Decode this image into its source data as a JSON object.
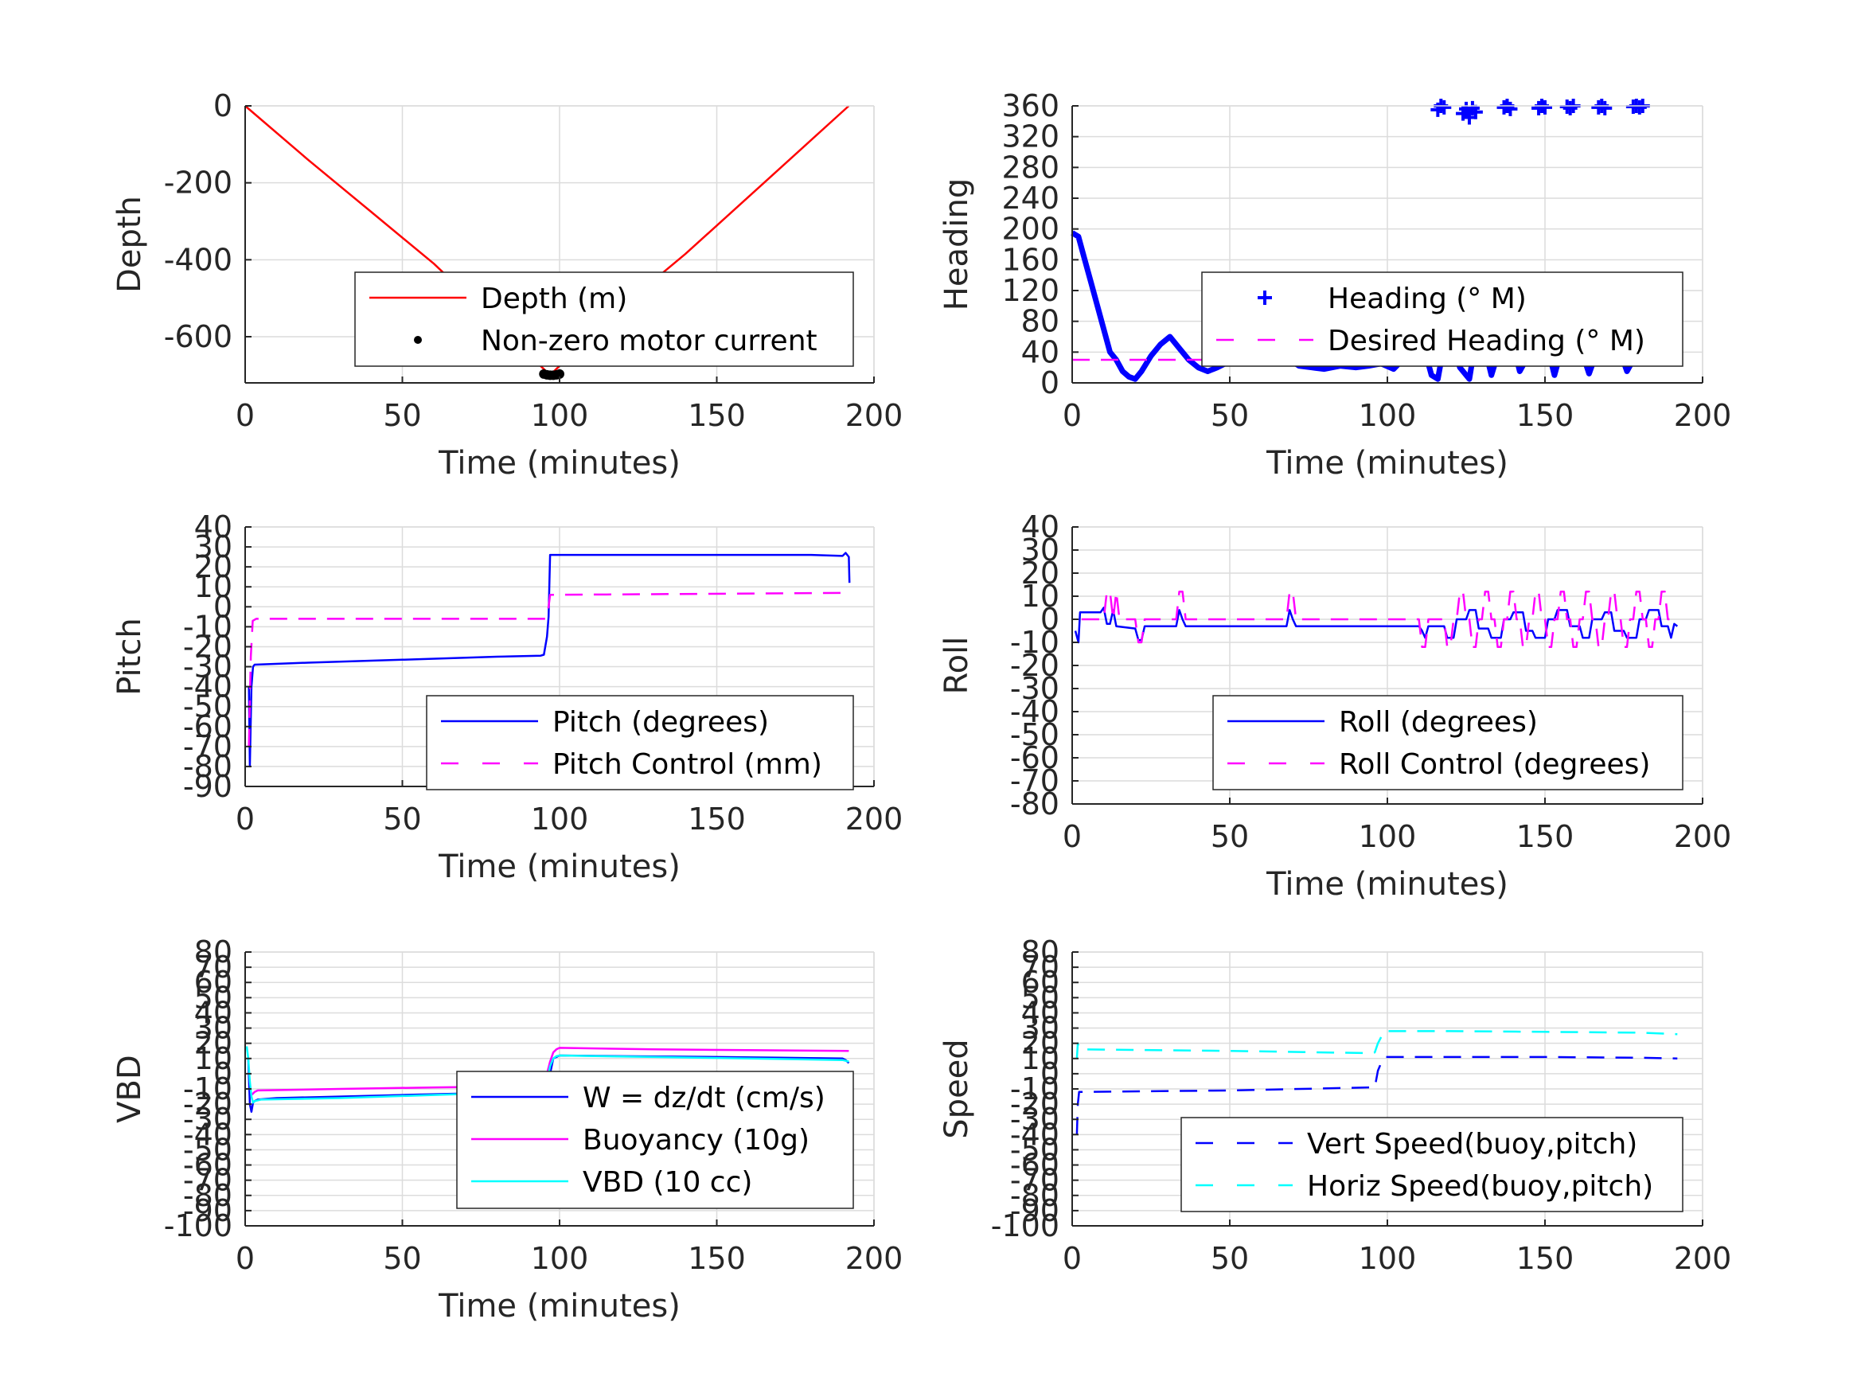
{
  "figure": {
    "background": "#ffffff",
    "grid_color": "#dcdcdc",
    "axis_color": "#262626"
  },
  "chart_data": [
    {
      "type": "line",
      "xlabel": "Time (minutes)",
      "ylabel": "Depth",
      "xlim": [
        0,
        200
      ],
      "ylim": [
        -720,
        0
      ],
      "xticks": [
        0,
        50,
        100,
        150,
        200
      ],
      "yticks": [
        0,
        -200,
        -400,
        -600
      ],
      "grid": true,
      "legend_placement": "lower-right",
      "series": [
        {
          "name": "Depth (m)",
          "color": "#ff0000",
          "style": "solid",
          "x": [
            0,
            20,
            40,
            60,
            80,
            97,
            115,
            140,
            165,
            192
          ],
          "y": [
            0,
            -140,
            -275,
            -410,
            -565,
            -700,
            -555,
            -385,
            -200,
            0
          ]
        },
        {
          "name": "Non-zero motor current",
          "color": "#000000",
          "style": "dot",
          "x": [
            95,
            96,
            97,
            98,
            99,
            100
          ],
          "y": [
            -697,
            -699,
            -700,
            -700,
            -699,
            -697
          ]
        }
      ]
    },
    {
      "type": "line",
      "xlabel": "Time (minutes)",
      "ylabel": "Heading",
      "xlim": [
        0,
        200
      ],
      "ylim": [
        0,
        360
      ],
      "xticks": [
        0,
        50,
        100,
        150,
        200
      ],
      "yticks": [
        0,
        40,
        80,
        120,
        160,
        200,
        240,
        280,
        320,
        360
      ],
      "grid": true,
      "legend_placement": "lower-right",
      "series": [
        {
          "name": "Heading (° M)",
          "color": "#0000ff",
          "style": "plus",
          "x": [
            0,
            2,
            4,
            6,
            8,
            10,
            12,
            14,
            16,
            18,
            20,
            22,
            25,
            28,
            31,
            34,
            37,
            40,
            43,
            46,
            50,
            54,
            58,
            62,
            66,
            69,
            72,
            76,
            80,
            85,
            90,
            94,
            98,
            102,
            106,
            110,
            112,
            114,
            116,
            118,
            120,
            123,
            126,
            128,
            130,
            133,
            136,
            139,
            142,
            146,
            150,
            153,
            156,
            160,
            164,
            168,
            172,
            176,
            180,
            184,
            188,
            190,
            192
          ],
          "y": [
            195,
            190,
            160,
            130,
            100,
            70,
            40,
            30,
            15,
            8,
            5,
            15,
            35,
            50,
            60,
            45,
            30,
            20,
            15,
            20,
            28,
            35,
            40,
            45,
            50,
            30,
            22,
            20,
            18,
            22,
            20,
            22,
            25,
            18,
            35,
            45,
            40,
            10,
            5,
            50,
            60,
            20,
            5,
            55,
            60,
            10,
            50,
            65,
            15,
            45,
            60,
            10,
            55,
            62,
            12,
            58,
            62,
            15,
            45,
            60,
            35,
            60,
            30
          ]
        },
        {
          "name": "",
          "color": "#0000ff",
          "style": "plus-only",
          "x": [
            116,
            117,
            118,
            124,
            125,
            126,
            127,
            128,
            137,
            138,
            139,
            148,
            149,
            150,
            157,
            158,
            159,
            167,
            168,
            169,
            178,
            179,
            180,
            181
          ],
          "y": [
            355,
            360,
            358,
            350,
            356,
            345,
            357,
            352,
            358,
            360,
            356,
            357,
            360,
            358,
            359,
            357,
            360,
            358,
            360,
            357,
            359,
            360,
            358,
            360
          ]
        },
        {
          "name": "Desired Heading (° M)",
          "color": "#ff00ff",
          "style": "dash",
          "x": [
            0,
            192
          ],
          "y": [
            30,
            30
          ]
        }
      ]
    },
    {
      "type": "line",
      "xlabel": "Time (minutes)",
      "ylabel": "Pitch",
      "xlim": [
        0,
        200
      ],
      "ylim": [
        -90,
        40
      ],
      "xticks": [
        0,
        50,
        100,
        150,
        200
      ],
      "yticks": [
        40,
        30,
        20,
        10,
        0,
        -10,
        -20,
        -30,
        -40,
        -50,
        -60,
        -70,
        -80,
        -90
      ],
      "grid": true,
      "legend_placement": "lower-right",
      "series": [
        {
          "name": "Pitch (degrees)",
          "color": "#0000ff",
          "style": "solid",
          "x": [
            1.2,
            1.5,
            2,
            2.5,
            3,
            20,
            50,
            80,
            94,
            95,
            96,
            96.5,
            97,
            98,
            120,
            150,
            180,
            190,
            191,
            192,
            192.2
          ],
          "y": [
            -40,
            -80,
            -40,
            -30,
            -29,
            -28,
            -26.5,
            -25,
            -24.5,
            -24,
            -15,
            -5,
            26,
            26,
            26,
            26,
            26,
            25.5,
            27,
            25,
            12
          ]
        },
        {
          "name": "Pitch Control (mm)",
          "color": "#ff00ff",
          "style": "dash",
          "x": [
            1.2,
            1.8,
            2.4,
            3.5,
            95.5,
            96,
            96.5,
            97,
            192
          ],
          "y": [
            -70,
            -25,
            -7,
            -6,
            -6,
            -4,
            0,
            6,
            7
          ]
        }
      ]
    },
    {
      "type": "line",
      "xlabel": "Time (minutes)",
      "ylabel": "Roll",
      "xlim": [
        0,
        200
      ],
      "ylim": [
        -80,
        40
      ],
      "xticks": [
        0,
        50,
        100,
        150,
        200
      ],
      "yticks": [
        40,
        30,
        20,
        10,
        0,
        -10,
        -20,
        -30,
        -40,
        -50,
        -60,
        -70,
        -80
      ],
      "grid": true,
      "legend_placement": "lower-right",
      "series": [
        {
          "name": "Roll (degrees)",
          "color": "#0000ff",
          "style": "solid",
          "x": [
            1,
            2,
            2.5,
            9,
            10,
            11,
            12,
            13,
            14,
            20,
            21,
            22,
            23,
            24,
            33,
            34,
            35,
            36,
            68,
            69,
            70,
            71,
            110,
            111,
            112,
            113,
            118,
            119,
            121,
            122,
            125,
            126,
            128,
            129,
            132,
            133,
            136,
            137,
            139,
            140,
            143,
            144,
            146,
            147,
            150,
            151,
            153,
            154,
            157,
            158,
            161,
            162,
            164,
            165,
            168,
            169,
            171,
            172,
            175,
            176,
            179,
            180,
            182,
            183,
            186,
            187,
            189,
            190,
            191,
            192
          ],
          "y": [
            -5,
            -10,
            3,
            3,
            5,
            -2,
            -2,
            4,
            -3,
            -4,
            -9,
            -9,
            -3,
            -3,
            -3,
            4,
            0,
            -3,
            -3,
            4,
            0,
            -3,
            -3,
            -5,
            -8,
            -3,
            -3,
            -8,
            -8,
            0,
            0,
            4,
            4,
            -4,
            -4,
            -8,
            -8,
            0,
            0,
            3,
            3,
            -5,
            -5,
            -8,
            -8,
            0,
            0,
            4,
            4,
            -3,
            -3,
            -8,
            -8,
            0,
            0,
            3,
            3,
            -5,
            -5,
            -8,
            -8,
            0,
            0,
            4,
            4,
            -3,
            -3,
            -8,
            -2,
            -3
          ]
        },
        {
          "name": "Roll Control (degrees)",
          "color": "#ff00ff",
          "style": "dash",
          "x": [
            3,
            4,
            10,
            11,
            12,
            13,
            14,
            15,
            20,
            21,
            22,
            23,
            33,
            34,
            35,
            36,
            68,
            69,
            70,
            71,
            110,
            111,
            112,
            113,
            118,
            119,
            120,
            121,
            122,
            123,
            124,
            125,
            126,
            127,
            128,
            129,
            130,
            131,
            132,
            133,
            134,
            135,
            136,
            137,
            138,
            139,
            140,
            141,
            142,
            143,
            144,
            145,
            146,
            147,
            148,
            149,
            150,
            151,
            152,
            153,
            154,
            155,
            156,
            157,
            158,
            159,
            160,
            161,
            162,
            163,
            164,
            165,
            166,
            167,
            168,
            169,
            170,
            171,
            172,
            173,
            174,
            175,
            176,
            177,
            178,
            179,
            180,
            181,
            182,
            183,
            184,
            185,
            186,
            187,
            188,
            189,
            190
          ],
          "y": [
            0,
            0,
            0,
            12,
            12,
            0,
            12,
            0,
            0,
            -10,
            -10,
            0,
            0,
            12,
            12,
            0,
            0,
            12,
            12,
            0,
            0,
            -12,
            -12,
            0,
            0,
            -12,
            -12,
            0,
            0,
            12,
            12,
            0,
            0,
            -12,
            -12,
            0,
            0,
            12,
            12,
            0,
            0,
            -12,
            -12,
            0,
            0,
            12,
            12,
            0,
            0,
            -12,
            -12,
            0,
            0,
            12,
            12,
            0,
            0,
            -12,
            -12,
            0,
            0,
            12,
            12,
            0,
            0,
            -12,
            -12,
            0,
            0,
            12,
            12,
            0,
            0,
            -12,
            -12,
            0,
            0,
            12,
            12,
            0,
            0,
            -12,
            -12,
            0,
            0,
            12,
            12,
            0,
            0,
            -12,
            -12,
            0,
            0,
            12,
            12,
            0,
            0
          ]
        }
      ]
    },
    {
      "type": "line",
      "xlabel": "Time (minutes)",
      "ylabel": "VBD",
      "xlim": [
        0,
        200
      ],
      "ylim": [
        -100,
        80
      ],
      "xticks": [
        0,
        50,
        100,
        150,
        200
      ],
      "yticks": [
        80,
        70,
        60,
        50,
        40,
        30,
        20,
        10,
        0,
        -10,
        -20,
        -30,
        -40,
        -50,
        -60,
        -70,
        -80,
        -90,
        -100
      ],
      "grid": true,
      "legend_placement": "lower-right",
      "series": [
        {
          "name": "W = dz/dt (cm/s)",
          "color": "#0000ff",
          "style": "solid",
          "x": [
            1,
            1.5,
            2,
            2.5,
            3,
            4,
            10,
            30,
            50,
            70,
            90,
            95,
            96,
            97,
            98,
            99,
            100,
            120,
            150,
            170,
            190,
            191,
            192
          ],
          "y": [
            10,
            -20,
            -25,
            -19,
            -18,
            -17,
            -16,
            -15,
            -14,
            -13,
            -12,
            -11,
            -10,
            0,
            10,
            11,
            12,
            11.5,
            11,
            10.5,
            10,
            9,
            7
          ]
        },
        {
          "name": "Buoyancy (10g)",
          "color": "#ff00ff",
          "style": "solid",
          "x": [
            2,
            3,
            4,
            30,
            60,
            95,
            96,
            97,
            98,
            99,
            100,
            130,
            160,
            192
          ],
          "y": [
            -14,
            -12,
            -11,
            -10,
            -9,
            -8,
            0,
            8,
            14,
            16,
            17,
            16,
            15.5,
            15
          ]
        },
        {
          "name": "VBD (10 cc)",
          "color": "#00ffff",
          "style": "solid",
          "x": [
            0.5,
            1,
            1.5,
            2,
            2.5,
            3,
            5,
            30,
            60,
            90,
            95,
            96,
            97,
            98,
            99,
            100,
            130,
            160,
            190,
            192
          ],
          "y": [
            18,
            10,
            -5,
            -15,
            -19,
            -18,
            -17,
            -16,
            -14,
            -12,
            -11,
            -5,
            5,
            10,
            11.5,
            12,
            11,
            10,
            9,
            8
          ]
        }
      ]
    },
    {
      "type": "line",
      "xlabel": "",
      "ylabel": "Speed",
      "xlim": [
        0,
        200
      ],
      "ylim": [
        -100,
        80
      ],
      "xticks": [
        0,
        50,
        100,
        150,
        200
      ],
      "yticks": [
        80,
        70,
        60,
        50,
        40,
        30,
        20,
        10,
        0,
        -10,
        -20,
        -30,
        -40,
        -50,
        -60,
        -70,
        -80,
        -90,
        -100
      ],
      "grid": true,
      "legend_placement": "lower-right",
      "series": [
        {
          "name": "Vert Speed(buoy,pitch)",
          "color": "#0000ff",
          "style": "dash",
          "x": [
            1.5,
            1.8,
            2.2,
            3,
            50,
            95,
            96,
            97,
            98,
            99,
            120,
            150,
            180,
            192
          ],
          "y": [
            -40,
            -20,
            -12,
            -12,
            -11,
            -9,
            -9,
            2,
            7,
            11,
            11,
            11,
            10.5,
            10
          ]
        },
        {
          "name": "Horiz Speed(buoy,pitch)",
          "color": "#00ffff",
          "style": "dash",
          "x": [
            1.5,
            1.8,
            2.2,
            3,
            50,
            95,
            96,
            97,
            98,
            99,
            120,
            150,
            180,
            192
          ],
          "y": [
            10,
            20,
            17,
            16,
            15,
            13.5,
            14,
            20,
            24,
            28,
            28,
            27.5,
            27,
            26
          ]
        }
      ]
    }
  ]
}
